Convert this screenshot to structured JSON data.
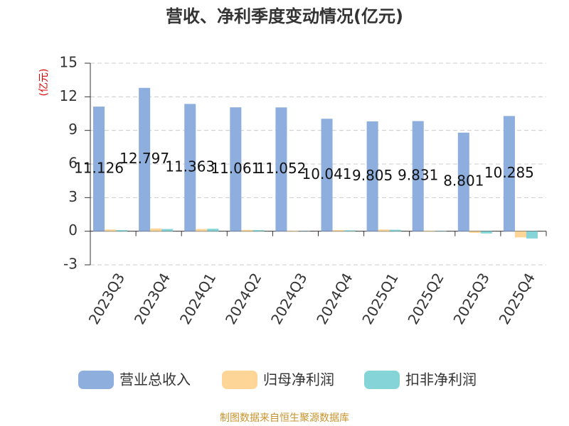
{
  "chart_data": {
    "type": "bar",
    "title": "营收、净利季度变动情况(亿元)",
    "y_label": "(亿元)",
    "source": "制图数据来自恒生聚源数据库",
    "categories": [
      "2023Q3",
      "2023Q4",
      "2024Q1",
      "2024Q2",
      "2024Q3",
      "2024Q4",
      "2025Q1",
      "2025Q2",
      "2025Q3",
      "2025Q4"
    ],
    "series": [
      {
        "name": "营业总收入",
        "color": "#8eaedd",
        "values": [
          11.126,
          12.797,
          11.363,
          11.061,
          11.052,
          10.041,
          9.805,
          9.831,
          8.801,
          10.285
        ]
      },
      {
        "name": "归母净利润",
        "color": "#fdd596",
        "values": [
          0.15,
          0.25,
          0.2,
          0.12,
          0.05,
          0.1,
          0.15,
          0.05,
          -0.15,
          -0.55
        ]
      },
      {
        "name": "扣非净利润",
        "color": "#85d5d8",
        "values": [
          0.1,
          0.2,
          0.22,
          0.1,
          0.02,
          0.08,
          0.13,
          0.03,
          -0.2,
          -0.65
        ]
      }
    ],
    "labeled_series": 0,
    "ylim": [
      -3,
      15
    ],
    "yticks": [
      -3,
      0,
      3,
      6,
      9,
      12,
      15
    ],
    "grid": true
  }
}
